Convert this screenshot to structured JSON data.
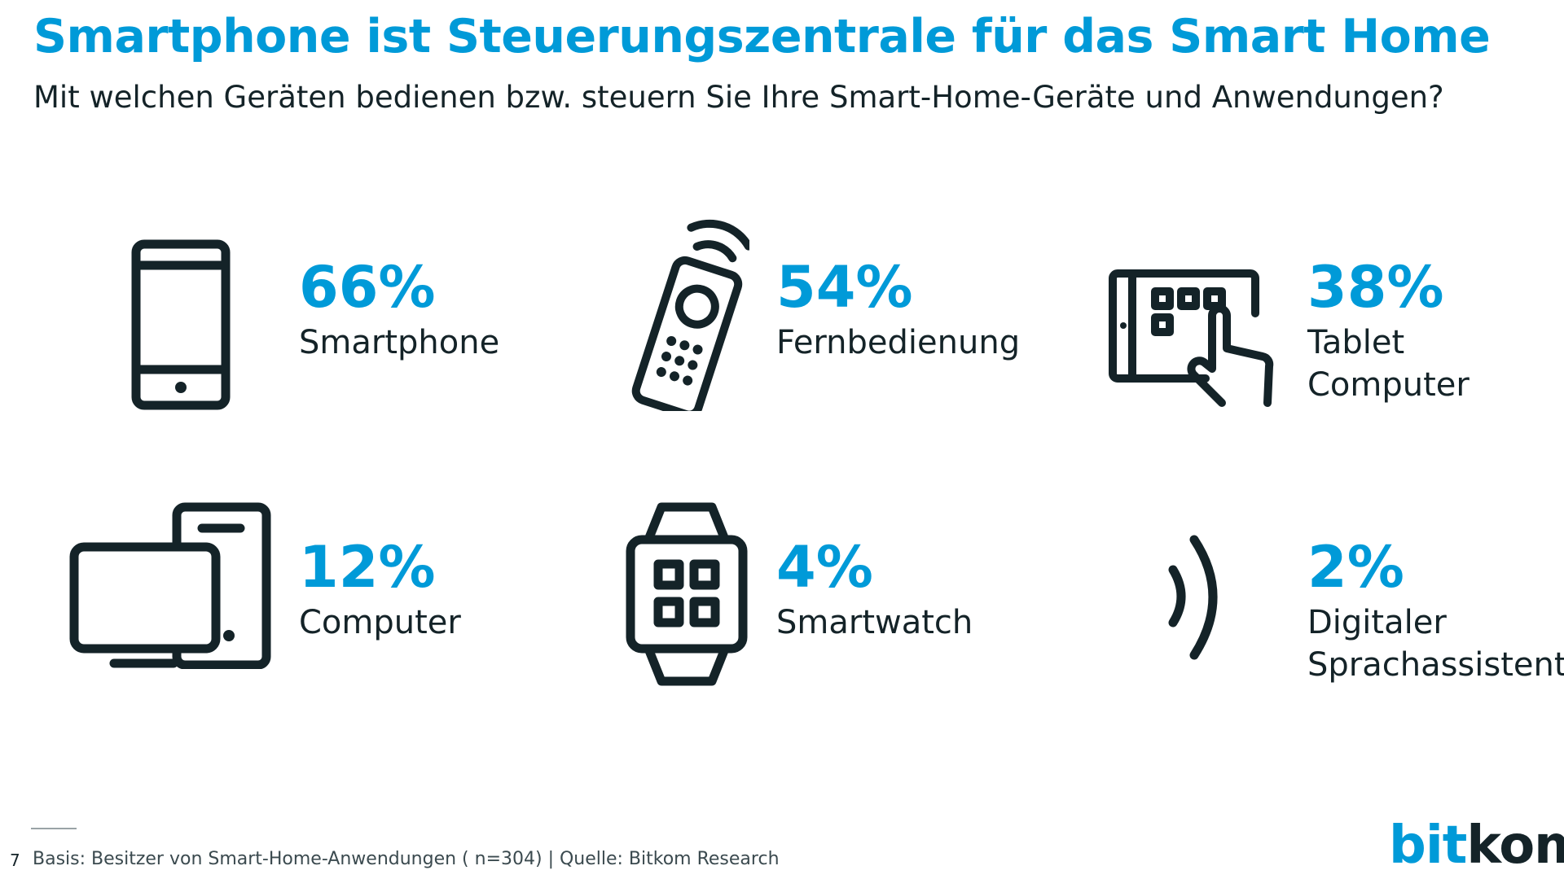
{
  "header": {
    "title": "Smartphone ist Steuerungszentrale für das Smart Home",
    "subtitle": "Mit welchen Geräten bedienen bzw. steuern Sie Ihre Smart-Home-Geräte und Anwendungen?"
  },
  "chart_data": {
    "type": "table",
    "title": "Smartphone ist Steuerungszentrale für das Smart Home",
    "subtitle": "Mit welchen Geräten bedienen bzw. steuern Sie Ihre Smart-Home-Geräte und Anwendungen?",
    "items": [
      {
        "pct_label": "66%",
        "value": 66,
        "label_lines": [
          "Smartphone"
        ],
        "icon": "smartphone-icon"
      },
      {
        "pct_label": "54%",
        "value": 54,
        "label_lines": [
          "Fernbedienung"
        ],
        "icon": "remote-control-icon"
      },
      {
        "pct_label": "38%",
        "value": 38,
        "label_lines": [
          "Tablet",
          "Computer"
        ],
        "icon": "tablet-touch-icon"
      },
      {
        "pct_label": "12%",
        "value": 12,
        "label_lines": [
          "Computer"
        ],
        "icon": "computer-icon"
      },
      {
        "pct_label": "4%",
        "value": 4,
        "label_lines": [
          "Smartwatch"
        ],
        "icon": "smartwatch-icon"
      },
      {
        "pct_label": "2%",
        "value": 2,
        "label_lines": [
          "Digitaler",
          "Sprachassistent"
        ],
        "icon": "voice-assistant-icon"
      }
    ]
  },
  "footer": {
    "page_number": "7",
    "note": "Basis: Besitzer von Smart-Home-Anwendungen ( n=304) | Quelle: Bitkom Research",
    "logo_bit": "bit",
    "logo_kom": "kom"
  },
  "colors": {
    "accent": "#009ad8",
    "dark": "#142328"
  }
}
